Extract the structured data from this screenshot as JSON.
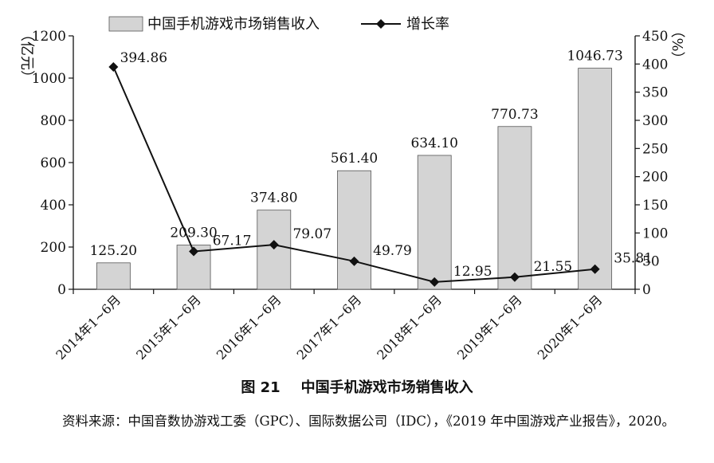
{
  "chart_data": {
    "type": "bar+line",
    "title": "中国手机游戏市场销售收入",
    "figure_number": "图 21",
    "categories": [
      "2014年1~6月",
      "2015年1~6月",
      "2016年1~6月",
      "2017年1~6月",
      "2018年1~6月",
      "2019年1~6月",
      "2020年1~6月"
    ],
    "series": [
      {
        "name": "中国手机游戏市场销售收入",
        "kind": "bar",
        "axis": "left",
        "values": [
          125.2,
          209.3,
          374.8,
          561.4,
          634.1,
          770.73,
          1046.73
        ],
        "labels": [
          "125.20",
          "209.30",
          "374.80",
          "561.40",
          "634.10",
          "770.73",
          "1046.73"
        ],
        "color": "#d4d4d4"
      },
      {
        "name": "增长率",
        "kind": "line",
        "axis": "right",
        "values": [
          394.86,
          67.17,
          79.07,
          49.79,
          12.95,
          21.55,
          35.81
        ],
        "labels": [
          "394.86",
          "67.17",
          "79.07",
          "49.79",
          "12.95",
          "21.55",
          "35.81"
        ],
        "color": "#111111"
      }
    ],
    "y_left": {
      "label": "（亿元）",
      "ylim": [
        0,
        1200
      ],
      "ticks": [
        "0",
        "200",
        "400",
        "600",
        "800",
        "1000",
        "1200"
      ]
    },
    "y_right": {
      "label": "（%）",
      "ylim": [
        0,
        450
      ],
      "ticks": [
        "0",
        "50",
        "100",
        "150",
        "200",
        "250",
        "300",
        "350",
        "400",
        "450"
      ]
    },
    "legend_position": "top",
    "grid": false
  },
  "caption": {
    "number": "图 21",
    "text": "中国手机游戏市场销售收入"
  },
  "source_note": "资料来源：中国音数协游戏工委（GPC）、国际数据公司（IDC），《2019 年中国游戏产业报告》，2020。"
}
